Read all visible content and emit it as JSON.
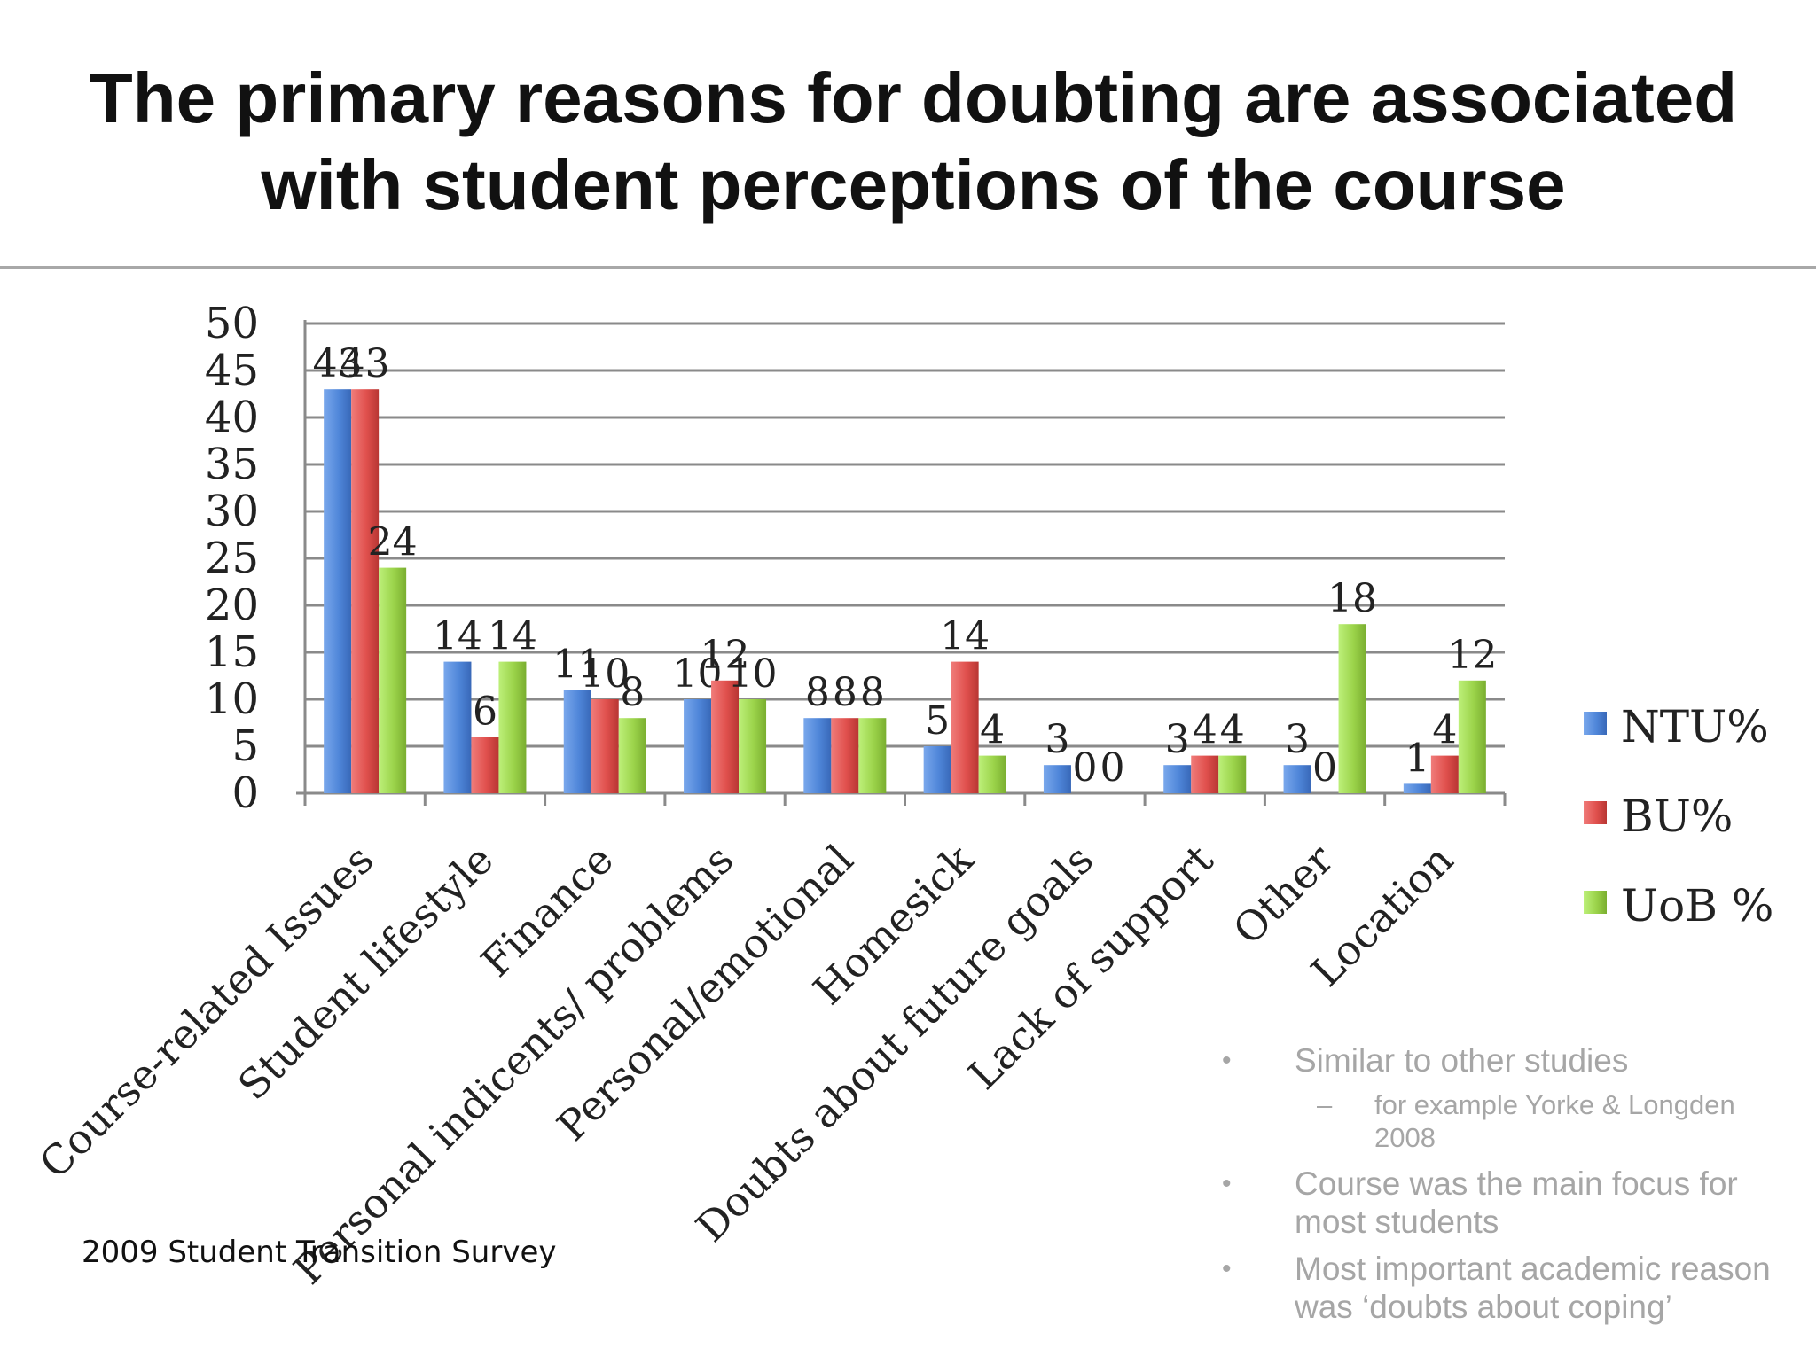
{
  "slide": {
    "title_line1": "The primary reasons for doubting are associated",
    "title_line2": "with student perceptions of the course",
    "source": "2009 Student Transition Survey",
    "notes": [
      {
        "bullet": "•",
        "text": "Similar to other studies"
      },
      {
        "dash": "–",
        "text": "for example Yorke & Longden 2008"
      },
      {
        "bullet": "•",
        "text": "Course was the main focus for most students"
      },
      {
        "bullet": "•",
        "text": "Most important academic reason was ‘doubts about coping’"
      }
    ]
  },
  "chart_data": {
    "type": "bar",
    "title": "",
    "xlabel": "",
    "ylabel": "",
    "ylim": [
      0,
      50
    ],
    "yticks": [
      0,
      5,
      10,
      15,
      20,
      25,
      30,
      35,
      40,
      45,
      50
    ],
    "grid": true,
    "legend_position": "right",
    "categories": [
      "Course-related Issues",
      "Student lifestyle",
      "Finance",
      "Personal indicents/ problems",
      "Personal/emotional",
      "Homesick",
      "Doubts about future goals",
      "Lack of support",
      "Other",
      "Location"
    ],
    "series": [
      {
        "name": "NTU%",
        "color": "#4f86d9",
        "values": [
          43,
          14,
          11,
          10,
          8,
          5,
          3,
          3,
          3,
          1
        ]
      },
      {
        "name": "BU%",
        "color": "#e0504d",
        "values": [
          43,
          6,
          10,
          12,
          8,
          14,
          0,
          4,
          0,
          4
        ]
      },
      {
        "name": "UoB %",
        "color": "#9bd34a",
        "values": [
          24,
          14,
          8,
          10,
          8,
          4,
          0,
          4,
          18,
          12
        ]
      }
    ]
  }
}
